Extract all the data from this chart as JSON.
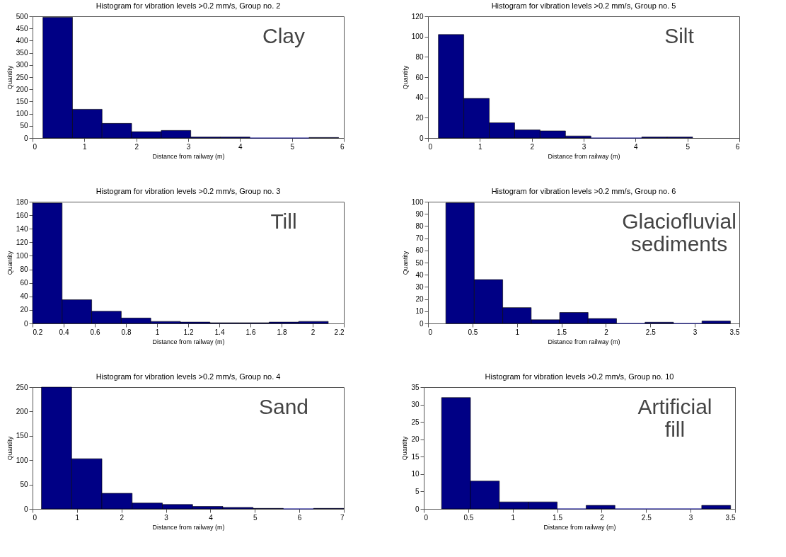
{
  "chart_data": [
    {
      "type": "histogram",
      "title": "Histogram for vibration levels >0.2 mm/s, Group no. 2",
      "xlabel": "Distance from railway (m)",
      "ylabel": "Quantity",
      "annotations": [
        "Clay"
      ],
      "color": "#000085",
      "bins": [
        0.2,
        0.77,
        1.34,
        1.91,
        2.48,
        3.05,
        3.62,
        4.19,
        4.76,
        5.33,
        5.9
      ],
      "values": [
        496,
        118,
        60,
        26,
        31,
        4,
        4,
        0,
        0,
        2
      ],
      "xlim": [
        0,
        6
      ],
      "xticks": [
        0,
        1,
        2,
        3,
        4,
        5,
        6
      ],
      "ylim": [
        0,
        500
      ],
      "yticks": [
        0,
        50,
        100,
        150,
        200,
        250,
        300,
        350,
        400,
        450,
        500
      ],
      "grid": false
    },
    {
      "type": "histogram",
      "title": "Histogram for vibration levels >0.2 mm/s, Group no. 5",
      "xlabel": "Distance from railway (m)",
      "ylabel": "Quantity",
      "annotations": [
        "Silt"
      ],
      "color": "#000085",
      "bins": [
        0.2,
        0.69,
        1.18,
        1.67,
        2.16,
        2.65,
        3.14,
        3.63,
        4.12,
        4.61,
        5.1
      ],
      "values": [
        102,
        39,
        15,
        8,
        7,
        2,
        0,
        0,
        1,
        1
      ],
      "xlim": [
        0,
        6
      ],
      "xticks": [
        0,
        1,
        2,
        3,
        4,
        5,
        6
      ],
      "ylim": [
        0,
        120
      ],
      "yticks": [
        0,
        20,
        40,
        60,
        80,
        100,
        120
      ],
      "grid": false
    },
    {
      "type": "histogram",
      "title": "Histogram for vibration levels >0.2 mm/s, Group no. 3",
      "xlabel": "Distance from railway (m)",
      "ylabel": "Quantity",
      "annotations": [
        "Till"
      ],
      "color": "#000085",
      "bins": [
        0.2,
        0.39,
        0.58,
        0.77,
        0.96,
        1.15,
        1.34,
        1.53,
        1.72,
        1.91,
        2.1
      ],
      "values": [
        178,
        35,
        18,
        8,
        3,
        2,
        1,
        1,
        2,
        3
      ],
      "xlim": [
        0.2,
        2.2
      ],
      "xticks": [
        0.2,
        0.4,
        0.6,
        0.8,
        1,
        1.2,
        1.4,
        1.6,
        1.8,
        2,
        2.2
      ],
      "ylim": [
        0,
        180
      ],
      "yticks": [
        0,
        20,
        40,
        60,
        80,
        100,
        120,
        140,
        160,
        180
      ],
      "grid": false
    },
    {
      "type": "histogram",
      "title": "Histogram for vibration levels >0.2 mm/s, Group no. 6",
      "xlabel": "Distance from railway (m)",
      "ylabel": "Quantity",
      "annotations": [
        "Glaciofluvial sediments"
      ],
      "color": "#000085",
      "bins": [
        0.2,
        0.52,
        0.84,
        1.16,
        1.48,
        1.8,
        2.12,
        2.44,
        2.76,
        3.08,
        3.4
      ],
      "values": [
        99,
        36,
        13,
        3,
        9,
        4,
        0,
        1,
        0,
        2
      ],
      "xlim": [
        0,
        3.5
      ],
      "xticks": [
        0,
        0.5,
        1,
        1.5,
        2,
        2.5,
        3,
        3.5
      ],
      "ylim": [
        0,
        100
      ],
      "yticks": [
        0,
        10,
        20,
        30,
        40,
        50,
        60,
        70,
        80,
        90,
        100
      ],
      "grid": false
    },
    {
      "type": "histogram",
      "title": "Histogram for vibration levels >0.2 mm/s, Group no. 4",
      "xlabel": "Distance from railway (m)",
      "ylabel": "Quantity",
      "annotations": [
        "Sand"
      ],
      "color": "#000085",
      "bins": [
        0.2,
        0.88,
        1.56,
        2.24,
        2.92,
        3.6,
        4.28,
        4.96,
        5.64,
        6.32,
        7.0
      ],
      "values": [
        250,
        103,
        32,
        12,
        9,
        5,
        3,
        1,
        0,
        1
      ],
      "xlim": [
        0,
        7
      ],
      "xticks": [
        0,
        1,
        2,
        3,
        4,
        5,
        6,
        7
      ],
      "ylim": [
        0,
        250
      ],
      "yticks": [
        0,
        50,
        100,
        150,
        200,
        250
      ],
      "grid": false
    },
    {
      "type": "histogram",
      "title": "Histogram for vibration levels >0.2 mm/s, Group no. 10",
      "xlabel": "Distance from railway (m)",
      "ylabel": "Quantity",
      "annotations": [
        "Artificial fill"
      ],
      "color": "#000085",
      "bins": [
        0.2,
        0.525,
        0.85,
        1.175,
        1.5,
        1.825,
        2.15,
        2.475,
        2.8,
        3.125,
        3.45
      ],
      "values": [
        32,
        8,
        2,
        2,
        0,
        1,
        0,
        0,
        0,
        1
      ],
      "xlim": [
        0,
        3.5
      ],
      "xticks": [
        0,
        0.5,
        1,
        1.5,
        2,
        2.5,
        3,
        3.5
      ],
      "ylim": [
        0,
        35
      ],
      "yticks": [
        0,
        5,
        10,
        15,
        20,
        25,
        30,
        35
      ],
      "grid": false
    }
  ]
}
